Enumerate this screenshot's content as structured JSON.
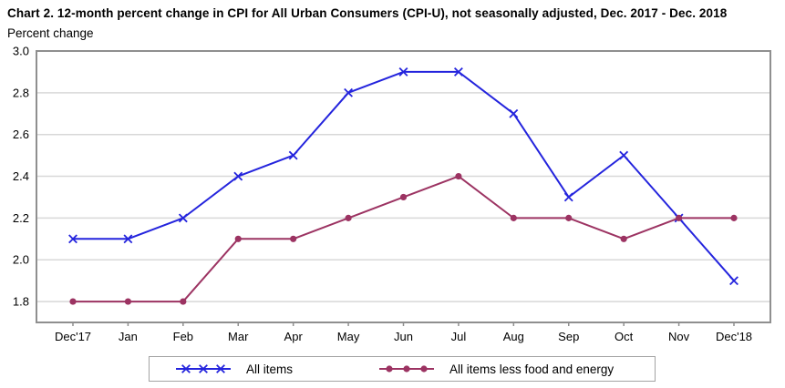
{
  "title": "Chart 2. 12-month percent change in CPI for All Urban Consumers (CPI-U), not seasonally adjusted, Dec. 2017 - Dec. 2018",
  "axis_label": "Percent change",
  "colors": {
    "all_items_line": "#2424dd",
    "core_line": "#9c3362",
    "gridline": "#d8d8d8",
    "plot_frame": "#8f8f8f",
    "text": "#000000"
  },
  "chart_data": {
    "type": "line",
    "title": "Chart 2. 12-month percent change in CPI for All Urban Consumers (CPI-U), not seasonally adjusted, Dec. 2017 - Dec. 2018",
    "ylabel": "Percent change",
    "xlabel": "",
    "categories": [
      "Dec'17",
      "Jan",
      "Feb",
      "Mar",
      "Apr",
      "May",
      "Jun",
      "Jul",
      "Aug",
      "Sep",
      "Oct",
      "Nov",
      "Dec'18"
    ],
    "series": [
      {
        "name": "All items",
        "marker": "x",
        "color": "#2424dd",
        "values": [
          2.1,
          2.1,
          2.2,
          2.4,
          2.5,
          2.8,
          2.9,
          2.9,
          2.7,
          2.3,
          2.5,
          2.2,
          1.9
        ]
      },
      {
        "name": "All items less food and energy",
        "marker": "circle",
        "color": "#9c3362",
        "values": [
          1.8,
          1.8,
          1.8,
          2.1,
          2.1,
          2.2,
          2.3,
          2.4,
          2.2,
          2.2,
          2.1,
          2.2,
          2.2
        ]
      }
    ],
    "ylim": [
      1.7,
      3.0
    ],
    "yticks": [
      3.0,
      2.8,
      2.6,
      2.4,
      2.2,
      2.0,
      1.8
    ],
    "grid": true,
    "legend_position": "bottom"
  }
}
